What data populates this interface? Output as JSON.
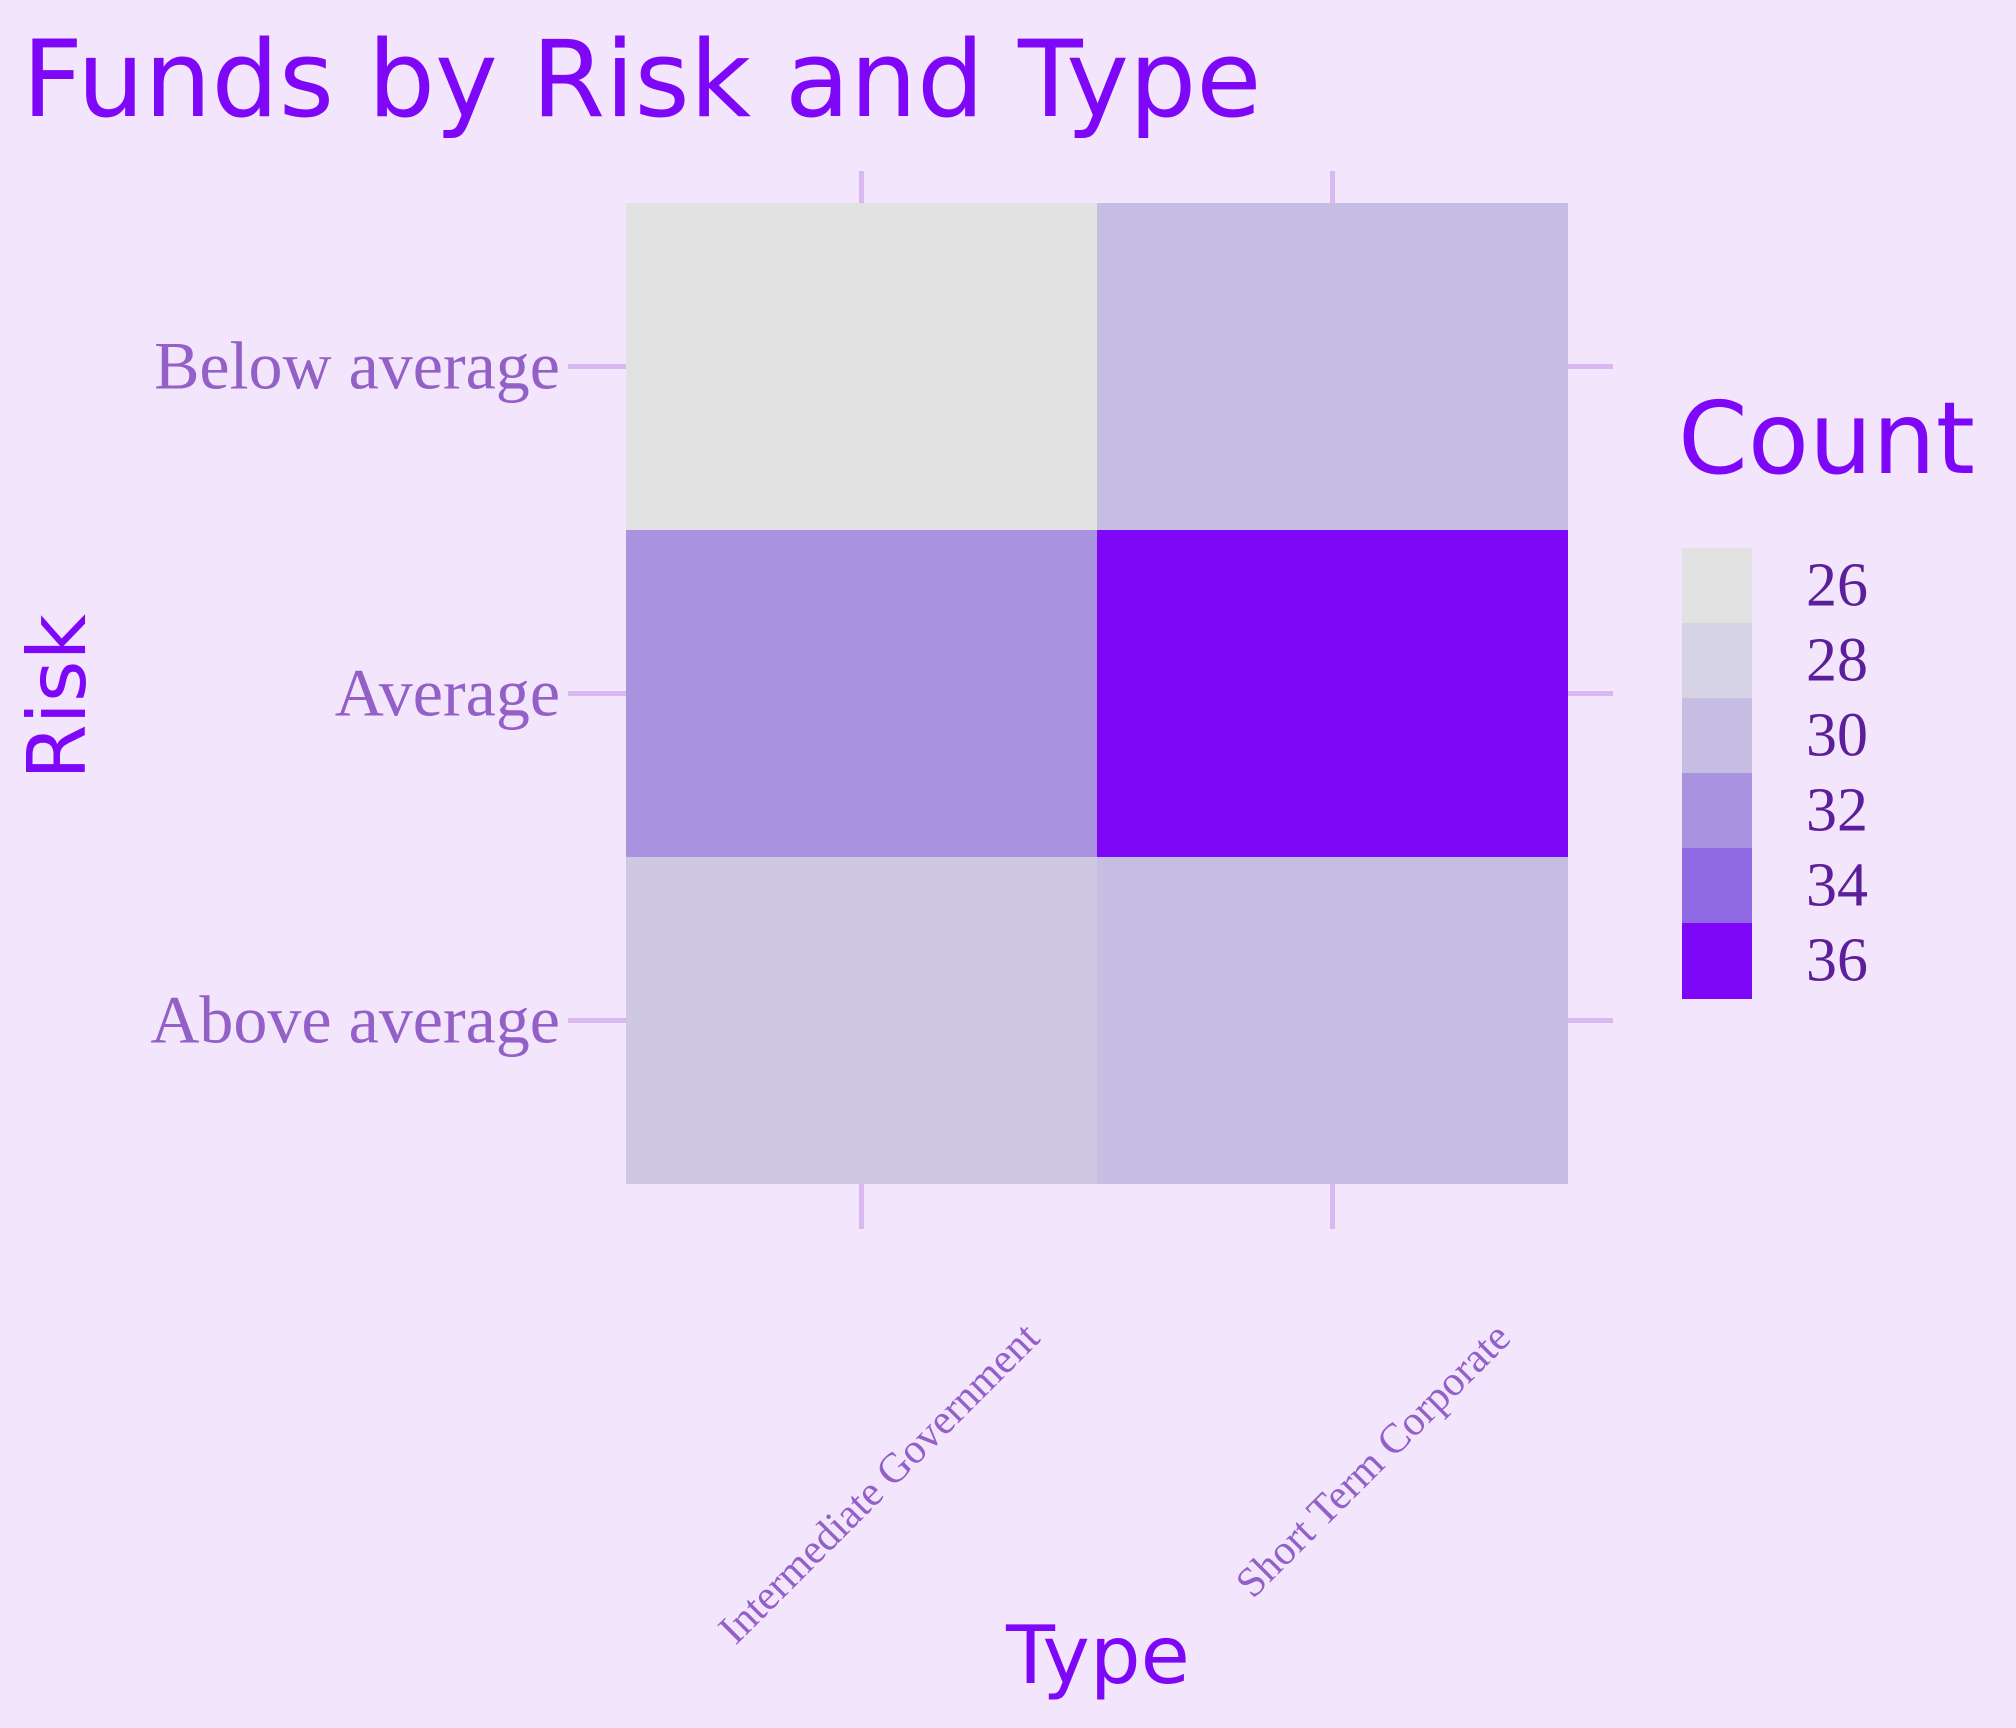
{
  "chart_data": {
    "type": "heatmap",
    "title": "Funds by Risk and Type",
    "xlabel": "Type",
    "ylabel": "Risk",
    "x_categories": [
      "Intermediate Government",
      "Short Term Corporate"
    ],
    "y_categories": [
      "Above average",
      "Average",
      "Below average"
    ],
    "values": [
      [
        29,
        30
      ],
      [
        32,
        36
      ],
      [
        26,
        30
      ]
    ],
    "legend": {
      "title": "Count",
      "breaks": [
        26,
        28,
        30,
        32,
        34,
        36
      ],
      "colors": [
        "#e2e2e2",
        "#d6d3e4",
        "#c5bde2",
        "#a993e0",
        "#8f6ae4",
        "#7f07f8"
      ],
      "placement": "right"
    },
    "colors": {
      "title": "#7f07f8",
      "axis_title": "#7f07f8",
      "tick_label": "#9360c8",
      "legend_label": "#5c1f9a",
      "tick_mark": "#d9b7f0",
      "background": "#f3e5fc"
    },
    "grid": false
  }
}
